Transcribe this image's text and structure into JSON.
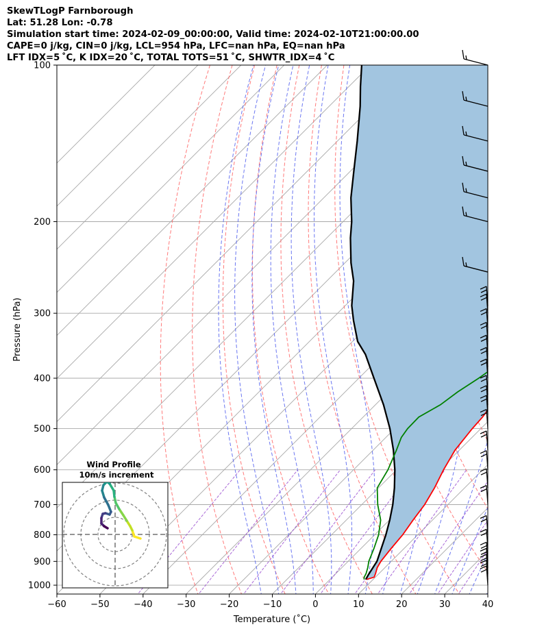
{
  "header": {
    "line1": "SkewTLogP Farnborough",
    "line2": "Lat: 51.28   Lon: -0.78",
    "line3": "Simulation start time: 2024-02-09_00:00:00, Valid time: 2024-02-10T21:00:00.00",
    "line4": "CAPE=0 j/kg, CIN=0 j/kg, LCL=954 hPa, LFC=nan hPa, EQ=nan hPa",
    "line5": "LFT IDX=5 ˚C, K IDX=20 ˚C, TOTAL TOTS=51 ˚C, SHWTR_IDX=4 ˚C"
  },
  "chart_data": {
    "type": "line",
    "title": "SkewTLogP Farnborough",
    "xlabel": "Temperature (˚C)",
    "ylabel": "Pressure (hPa)",
    "xlim": [
      -60,
      40
    ],
    "ylim": [
      1040,
      100
    ],
    "y_scale": "log",
    "grid": true,
    "x_ticks": [
      -60,
      -50,
      -40,
      -30,
      -20,
      -10,
      0,
      10,
      20,
      30,
      40
    ],
    "x_tick_labels": [
      "−60",
      "−50",
      "−40",
      "−30",
      "−20",
      "−10",
      "0",
      "10",
      "20",
      "30",
      "40"
    ],
    "y_ticks": [
      100,
      200,
      300,
      400,
      500,
      600,
      700,
      800,
      900,
      1000
    ],
    "y_tick_labels": [
      "100",
      "200",
      "300",
      "400",
      "500",
      "600",
      "700",
      "800",
      "900",
      "1000"
    ],
    "colors": {
      "temperature": "#ff0000",
      "dewpoint": "#008000",
      "parcel": "#000000",
      "cape_fill": "#a2c5e0",
      "dry_adiabat": "#ff6a6a",
      "moist_adiabat": "#5a67f0",
      "mixing_ratio": "#9a4fd0",
      "isotherm": "#a8a8a8"
    },
    "series": [
      {
        "key": "temperature",
        "points": [
          [
            8.5,
            975
          ],
          [
            9.7,
            965
          ],
          [
            9.2,
            950
          ],
          [
            8.2,
            925
          ],
          [
            7.6,
            900
          ],
          [
            7.0,
            850
          ],
          [
            6.5,
            800
          ],
          [
            5.5,
            750
          ],
          [
            4.6,
            700
          ],
          [
            3.0,
            650
          ],
          [
            0.9,
            600
          ],
          [
            -1.0,
            550
          ],
          [
            -2.0,
            500
          ],
          [
            -2.3,
            475
          ],
          [
            -3.0,
            450
          ],
          [
            -4.2,
            425
          ],
          [
            -6.0,
            400
          ],
          [
            -8.0,
            375
          ],
          [
            -9.4,
            350
          ],
          [
            -10.8,
            325
          ],
          [
            -11.5,
            300
          ],
          [
            -12.3,
            290
          ],
          [
            -11.0,
            275
          ],
          [
            -8.5,
            260
          ],
          [
            -7.3,
            250
          ],
          [
            -6.0,
            240
          ],
          [
            -4.7,
            230
          ],
          [
            -3.6,
            220
          ],
          [
            -3.0,
            210
          ],
          [
            -2.4,
            200
          ],
          [
            -1.5,
            190
          ],
          [
            -0.4,
            180
          ],
          [
            0.3,
            170
          ],
          [
            1.2,
            160
          ],
          [
            2.5,
            150
          ],
          [
            3.6,
            140
          ],
          [
            4.4,
            130
          ],
          [
            5.2,
            120
          ],
          [
            6.2,
            110
          ],
          [
            6.8,
            100
          ]
        ]
      },
      {
        "key": "dewpoint",
        "points": [
          [
            7.9,
            975
          ],
          [
            7.4,
            965
          ],
          [
            7.0,
            950
          ],
          [
            6.0,
            925
          ],
          [
            4.8,
            900
          ],
          [
            3.0,
            850
          ],
          [
            0.9,
            800
          ],
          [
            -2.0,
            750
          ],
          [
            -6.3,
            700
          ],
          [
            -10.3,
            650
          ],
          [
            -12.0,
            600
          ],
          [
            -14.6,
            550
          ],
          [
            -16.4,
            520
          ],
          [
            -17.0,
            500
          ],
          [
            -17.1,
            475
          ],
          [
            -14.9,
            450
          ],
          [
            -13.9,
            425
          ],
          [
            -12.2,
            400
          ],
          [
            -10.8,
            375
          ],
          [
            -10.3,
            360
          ],
          [
            -12.2,
            325
          ],
          [
            -14.3,
            300
          ],
          [
            -18.0,
            280
          ],
          [
            -20.1,
            260
          ],
          [
            -20.9,
            240
          ],
          [
            -21.4,
            220
          ],
          [
            -21.5,
            200
          ],
          [
            -21.2,
            185
          ],
          [
            -20.8,
            175
          ],
          [
            -20.8,
            170
          ],
          [
            -19.6,
            160
          ],
          [
            -16.7,
            150
          ],
          [
            -12.3,
            140
          ],
          [
            -7.6,
            130
          ],
          [
            -3.0,
            120
          ],
          [
            1.0,
            110
          ],
          [
            3.9,
            100
          ]
        ]
      },
      {
        "key": "parcel",
        "points": [
          [
            8.3,
            975
          ],
          [
            7.8,
            954
          ],
          [
            6.7,
            900
          ],
          [
            4.7,
            850
          ],
          [
            2.6,
            800
          ],
          [
            0.1,
            750
          ],
          [
            -2.8,
            700
          ],
          [
            -6.3,
            650
          ],
          [
            -10.4,
            600
          ],
          [
            -15.3,
            550
          ],
          [
            -21.1,
            500
          ],
          [
            -28.1,
            450
          ],
          [
            -36.5,
            400
          ],
          [
            -44.0,
            360
          ],
          [
            -48.8,
            340
          ],
          [
            -54.6,
            310
          ],
          [
            -58.5,
            290
          ],
          [
            -63.8,
            260
          ],
          [
            -68.6,
            240
          ],
          [
            -74.5,
            215
          ],
          [
            -78.0,
            200
          ],
          [
            -83.7,
            180
          ],
          [
            -89.2,
            160
          ],
          [
            -95.4,
            140
          ],
          [
            -102.8,
            120
          ],
          [
            -107.3,
            110
          ],
          [
            -112.0,
            100
          ]
        ]
      }
    ],
    "wind_barbs": {
      "pressures": [
        100,
        120,
        140,
        160,
        180,
        200,
        250,
        290,
        300,
        320,
        340,
        360,
        380,
        400,
        430,
        450,
        470,
        500,
        550,
        600,
        650,
        700,
        800,
        850,
        900,
        925,
        950,
        975,
        1000
      ]
    },
    "hodograph": {
      "title": "Wind Profile",
      "subtitle": "10m/s increment"
    }
  }
}
